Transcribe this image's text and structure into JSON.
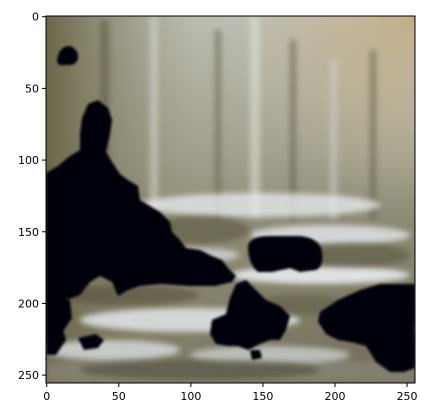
{
  "image": {
    "description_colors": {
      "sky": "#b9bcb9",
      "ground_light": "#dfe3e6",
      "ground_mid": "#7e7a68",
      "foliage_dark": "#5a5640",
      "mask": "#05040c"
    }
  },
  "axes": {
    "x_ticks": [
      0,
      50,
      100,
      150,
      200,
      250
    ],
    "y_ticks": [
      0,
      50,
      100,
      150,
      200,
      250
    ],
    "x_range": [
      0,
      256
    ],
    "y_range": [
      0,
      256
    ]
  }
}
